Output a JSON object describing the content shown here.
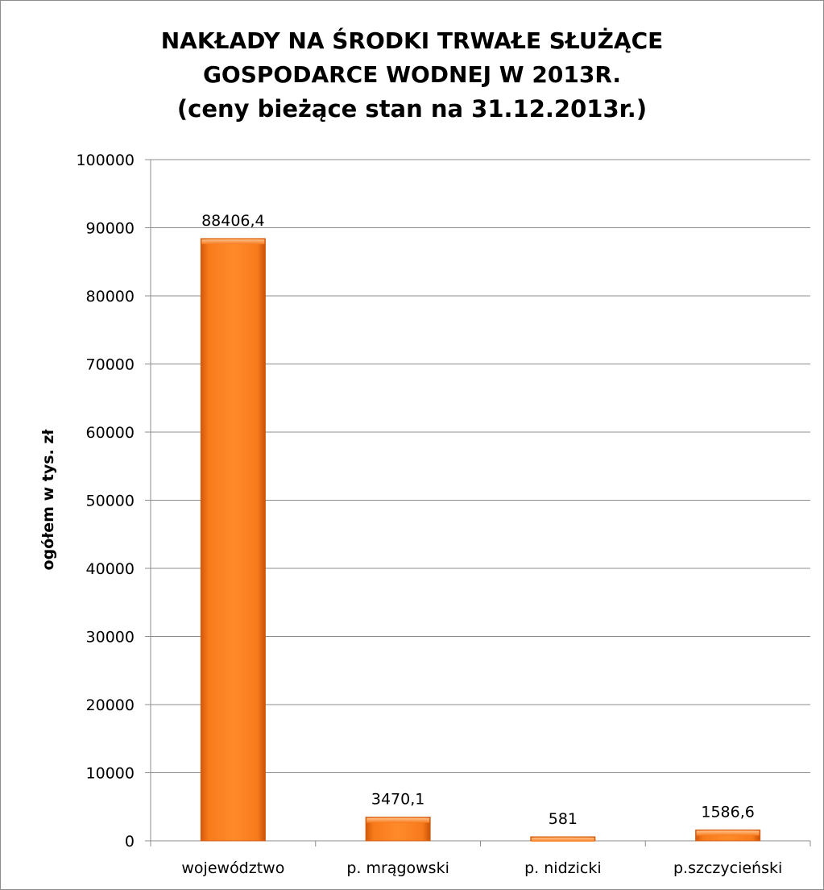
{
  "chart_data": {
    "type": "bar",
    "title_lines": [
      "NAKŁADY NA ŚRODKI TRWAŁE SŁUŻĄCE",
      "GOSPODARCE WODNEJ W 2013R.",
      "(ceny bieżące stan na 31.12.2013r.)"
    ],
    "xlabel": "",
    "ylabel": "ogółem w tys. zł",
    "categories": [
      "województwo",
      "p. mrągowski",
      "p. nidzicki",
      "p.szczycieński"
    ],
    "values": [
      88406.4,
      3470.1,
      581,
      1586.6
    ],
    "value_labels": [
      "88406,4",
      "3470,1",
      "581",
      "1586,6"
    ],
    "ylim": [
      0,
      100000
    ],
    "yticks": [
      0,
      10000,
      20000,
      30000,
      40000,
      50000,
      60000,
      70000,
      80000,
      90000,
      100000
    ],
    "grid": true,
    "legend": "none",
    "bar_color": "#f87a1b",
    "bar_dark": "#d45a0a",
    "bar_light": "#ffb070"
  }
}
